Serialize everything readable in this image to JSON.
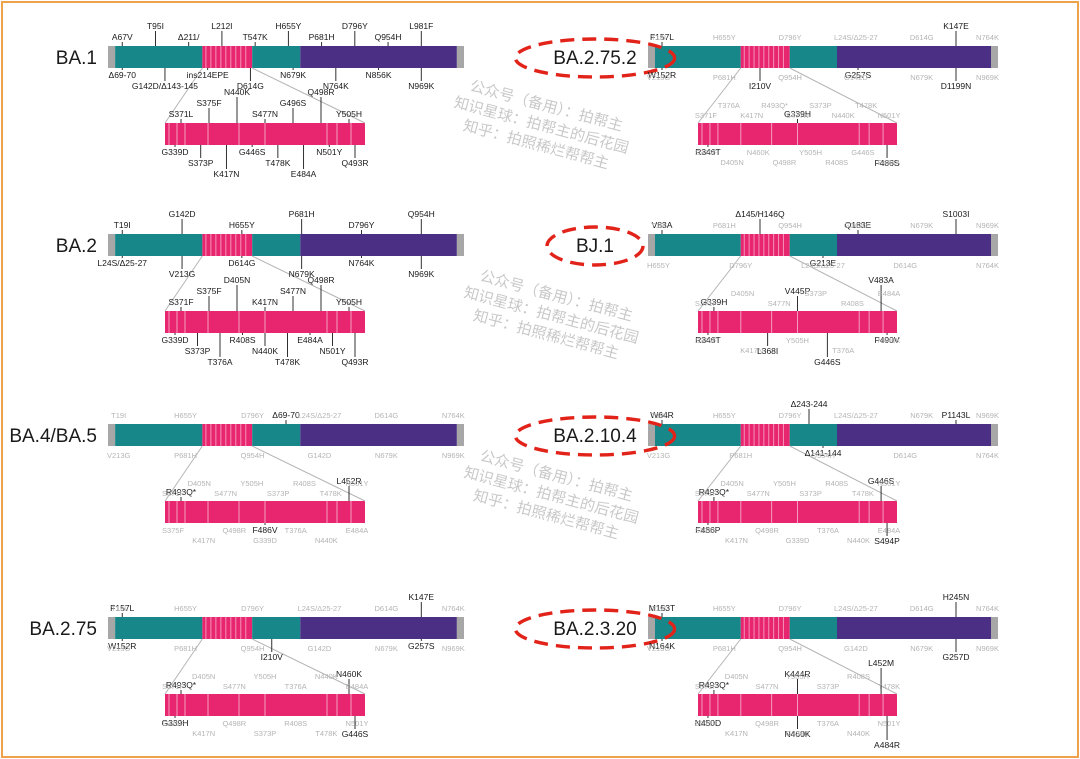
{
  "colors": {
    "frame": "#f0a24a",
    "ntd": "#17878a",
    "rbd": "#e8266f",
    "s2": "#4a2f85",
    "cap": "#a7a7a7",
    "active": "#1a1a1a",
    "inactive": "#b4b4b4",
    "circle": "#e2231a",
    "watermark": "#9c9c9c"
  },
  "watermark": {
    "lines": [
      "公众号（备用）：拍帮主",
      "知识星球：拍帮主的后花园",
      "知乎：拍照稀烂帮帮主"
    ]
  },
  "variants": [
    {
      "name": "BA.1",
      "highlight": false,
      "top_above": [
        "A67V",
        "T95I",
        "Δ211/",
        "L212I",
        "T547K",
        "H655Y",
        "P681H",
        "D796Y",
        "Q954H",
        "L981F"
      ],
      "top_below": [
        "Δ69-70",
        "G142D/Δ143-145",
        "ins214EPE",
        "D614G",
        "N679K",
        "N764K",
        "N856K",
        "N969K"
      ],
      "top_grey": [],
      "rbd_above": [
        "S371L",
        "S375F",
        "N440K",
        "S477N",
        "G496S",
        "Q498R",
        "Y505H"
      ],
      "rbd_below": [
        "G339D",
        "S373P",
        "K417N",
        "G446S",
        "T478K",
        "E484A",
        "N501Y",
        "Q493R"
      ],
      "rbd_grey": []
    },
    {
      "name": "BA.2.75.2",
      "highlight": true,
      "top_above": [
        "F157L",
        "K147E"
      ],
      "top_below": [
        "W152R",
        "I210V",
        "G257S",
        "D1199N"
      ],
      "top_grey": [
        "T19I",
        "V213G",
        "H655Y",
        "P681H",
        "D796Y",
        "Q954H",
        "L24S/Δ25-27",
        "G142D",
        "D614G",
        "N679K",
        "N764K",
        "N969K"
      ],
      "rbd_above": [
        "G339H"
      ],
      "rbd_below": [
        "R346T",
        "F486S"
      ],
      "rbd_grey": [
        "S371F",
        "S375F",
        "T376A",
        "D405N",
        "K417N",
        "N460K",
        "R493Q*",
        "Q498R",
        "S477N",
        "Y505H",
        "S373P",
        "R408S",
        "N440K",
        "G446S",
        "T478K",
        "E484A",
        "N501Y"
      ]
    },
    {
      "name": "BA.2",
      "highlight": false,
      "top_above": [
        "T19I",
        "G142D",
        "H655Y",
        "P681H",
        "D796Y",
        "Q954H"
      ],
      "top_below": [
        "L24S/Δ25-27",
        "V213G",
        "D614G",
        "N679K",
        "N764K",
        "N969K"
      ],
      "top_grey": [],
      "rbd_above": [
        "S371F",
        "S375F",
        "D405N",
        "K417N",
        "S477N",
        "Q498R",
        "Y505H"
      ],
      "rbd_below": [
        "G339D",
        "S373P",
        "T376A",
        "R408S",
        "N440K",
        "T478K",
        "E484A",
        "N501Y",
        "Q493R"
      ],
      "rbd_grey": []
    },
    {
      "name": "BJ.1",
      "highlight": true,
      "top_above": [
        "V83A",
        "Δ145/H146Q",
        "Q183E",
        "S1003I"
      ],
      "top_below": [
        "G213E"
      ],
      "top_grey": [
        "T19I",
        "H655Y",
        "P681H",
        "D796Y",
        "Q954H",
        "L24S/Δ25-27",
        "G142D",
        "D614G",
        "N679K",
        "N764K",
        "N969K"
      ],
      "rbd_above": [
        "G339H",
        "V445P",
        "V483A"
      ],
      "rbd_below": [
        "R346T",
        "L368I",
        "G446S",
        "F490V"
      ],
      "rbd_grey": [
        "S371F",
        "S375F",
        "D405N",
        "K417N",
        "S477N",
        "Y505H",
        "S373P",
        "T376A",
        "R408S",
        "N440K",
        "E484A"
      ]
    },
    {
      "name": "BA.4/BA.5",
      "highlight": false,
      "top_above": [
        "Δ69-70"
      ],
      "top_below": [],
      "top_grey": [
        "T19I",
        "V213G",
        "H655Y",
        "P681H",
        "D796Y",
        "Q954H",
        "L24S/Δ25-27",
        "G142D",
        "D614G",
        "N679K",
        "N764K",
        "N969K"
      ],
      "rbd_above": [
        "R493Q*",
        "L452R"
      ],
      "rbd_below": [
        "F486V"
      ],
      "rbd_grey": [
        "S371F",
        "S375F",
        "D405N",
        "K417N",
        "S477N",
        "Q498R",
        "Y505H",
        "G339D",
        "S373P",
        "T376A",
        "R408S",
        "N440K",
        "T478K",
        "E484A",
        "N501Y"
      ]
    },
    {
      "name": "BA.2.10.4",
      "highlight": true,
      "top_above": [
        "W64R",
        "Δ243-244",
        "P1143L"
      ],
      "top_below": [
        "Δ141-144"
      ],
      "top_grey": [
        "T19I",
        "V213G",
        "H655Y",
        "P681H",
        "D796Y",
        "Q954H",
        "L24S/Δ25-27",
        "D614G",
        "N679K",
        "N764K",
        "N969K"
      ],
      "rbd_above": [
        "R493Q*",
        "G446S"
      ],
      "rbd_below": [
        "F486P",
        "S494P"
      ],
      "rbd_grey": [
        "S371F",
        "S375F",
        "D405N",
        "K417N",
        "S477N",
        "Q498R",
        "Y505H",
        "G339D",
        "S373P",
        "T376A",
        "R408S",
        "N440K",
        "T478K",
        "E484A",
        "N501Y"
      ]
    },
    {
      "name": "BA.2.75",
      "highlight": false,
      "top_above": [
        "F157L",
        "K147E"
      ],
      "top_below": [
        "W152R",
        "I210V",
        "G257S"
      ],
      "top_grey": [
        "T19I",
        "V213G",
        "H655Y",
        "P681H",
        "D796Y",
        "Q954H",
        "L24S/Δ25-27",
        "G142D",
        "D614G",
        "N679K",
        "N764K",
        "N969K"
      ],
      "rbd_above": [
        "R493Q*",
        "N460K"
      ],
      "rbd_below": [
        "G339H",
        "G446S"
      ],
      "rbd_grey": [
        "S371F",
        "S375F",
        "D405N",
        "K417N",
        "S477N",
        "Q498R",
        "Y505H",
        "S373P",
        "T376A",
        "R408S",
        "N440K",
        "T478K",
        "E484A",
        "N501Y"
      ]
    },
    {
      "name": "BA.2.3.20",
      "highlight": true,
      "top_above": [
        "M153T",
        "H245N"
      ],
      "top_below": [
        "N164K",
        "G257D"
      ],
      "top_grey": [
        "T19I",
        "V213G",
        "H655Y",
        "P681H",
        "D796Y",
        "Q954H",
        "L24S/Δ25-27",
        "G142D",
        "D614G",
        "N679K",
        "N764K",
        "N969K"
      ],
      "rbd_above": [
        "R493Q*",
        "K444R",
        "L452M"
      ],
      "rbd_below": [
        "N450D",
        "N460K",
        "A484R"
      ],
      "rbd_grey": [
        "S371F",
        "S375F",
        "D405N",
        "K417N",
        "S477N",
        "Q498R",
        "Y505H",
        "G339D",
        "S373P",
        "T376A",
        "R408S",
        "N440K",
        "T478K",
        "N501Y"
      ]
    }
  ]
}
